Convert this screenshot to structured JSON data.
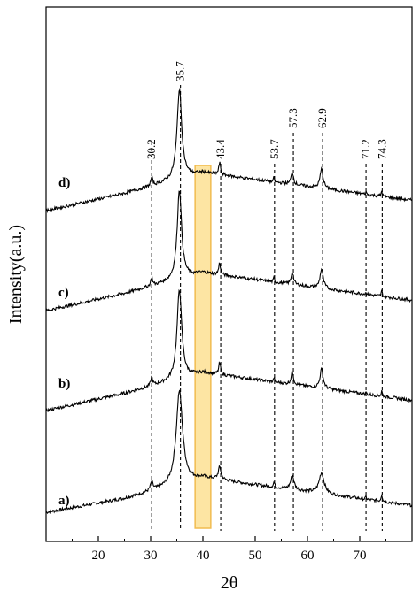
{
  "chart_data": {
    "type": "line",
    "title": "",
    "xlabel": "2θ",
    "ylabel": "Intensity(a.u.)",
    "xlim": [
      10,
      80
    ],
    "xticks": [
      20,
      30,
      40,
      50,
      60,
      70
    ],
    "yticks": "none",
    "grid": false,
    "legend": "none",
    "line_color": "#000000",
    "highlight_band": {
      "x": [
        38.5,
        41.5
      ],
      "fill": "#fde39a",
      "stroke": "#f0b43c"
    },
    "reference_lines": [
      {
        "x": 30.2,
        "label": "30.2"
      },
      {
        "x": 35.7,
        "label": "35.7"
      },
      {
        "x": 43.4,
        "label": "43.4"
      },
      {
        "x": 53.7,
        "label": "53.7"
      },
      {
        "x": 57.3,
        "label": "57.3"
      },
      {
        "x": 62.9,
        "label": "62.9"
      },
      {
        "x": 71.2,
        "label": "71.2"
      },
      {
        "x": 74.3,
        "label": "74.3"
      }
    ],
    "series": [
      {
        "label": "a)",
        "baseline": [
          [
            10,
            0.05
          ],
          [
            25,
            0.25
          ],
          [
            40,
            0.55
          ],
          [
            80,
            0.15
          ]
        ],
        "peaks": [
          [
            30.2,
            0.12,
            1.6
          ],
          [
            35.5,
            1.35,
            4.1
          ],
          [
            43.2,
            0.18,
            1.8
          ],
          [
            53.6,
            0.07,
            0.8
          ],
          [
            57.1,
            0.2,
            2.2
          ],
          [
            62.7,
            0.3,
            3.2
          ],
          [
            71.2,
            0.04,
            0.5
          ],
          [
            74.2,
            0.1,
            0.9
          ]
        ]
      },
      {
        "label": "b)",
        "baseline": [
          [
            10,
            0.05
          ],
          [
            25,
            0.3
          ],
          [
            40,
            0.6
          ],
          [
            80,
            0.2
          ]
        ],
        "peaks": [
          [
            30.2,
            0.12,
            1.2
          ],
          [
            35.5,
            1.3,
            3.0
          ],
          [
            43.2,
            0.17,
            1.2
          ],
          [
            53.6,
            0.07,
            0.6
          ],
          [
            57.1,
            0.18,
            1.5
          ],
          [
            62.7,
            0.28,
            2.0
          ],
          [
            71.2,
            0.04,
            0.4
          ],
          [
            74.2,
            0.08,
            0.7
          ]
        ]
      },
      {
        "label": "c)",
        "baseline": [
          [
            10,
            0.05
          ],
          [
            25,
            0.3
          ],
          [
            40,
            0.6
          ],
          [
            80,
            0.2
          ]
        ],
        "peaks": [
          [
            30.2,
            0.12,
            1.2
          ],
          [
            35.5,
            1.3,
            2.8
          ],
          [
            43.2,
            0.17,
            1.2
          ],
          [
            53.6,
            0.07,
            0.6
          ],
          [
            57.1,
            0.18,
            1.5
          ],
          [
            62.7,
            0.28,
            2.0
          ],
          [
            71.2,
            0.04,
            0.4
          ],
          [
            74.2,
            0.08,
            0.7
          ]
        ]
      },
      {
        "label": "d)",
        "baseline": [
          [
            10,
            0.05
          ],
          [
            25,
            0.3
          ],
          [
            40,
            0.6
          ],
          [
            80,
            0.2
          ]
        ],
        "peaks": [
          [
            30.2,
            0.12,
            1.2
          ],
          [
            35.5,
            1.3,
            3.0
          ],
          [
            43.2,
            0.17,
            1.2
          ],
          [
            53.6,
            0.07,
            0.6
          ],
          [
            57.1,
            0.18,
            1.5
          ],
          [
            62.7,
            0.28,
            2.0
          ],
          [
            71.2,
            0.04,
            0.4
          ],
          [
            74.2,
            0.08,
            0.7
          ]
        ]
      }
    ]
  }
}
